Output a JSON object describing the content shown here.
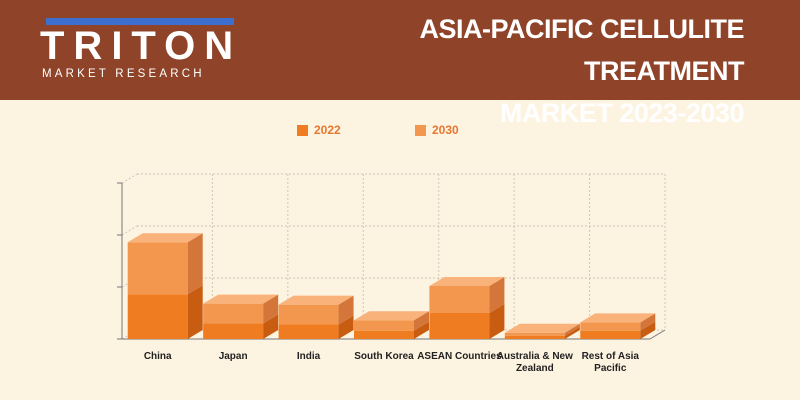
{
  "header": {
    "logo_text": "TRITON",
    "logo_subtext": "MARKET RESEARCH",
    "title_line1": "ASIA-PACIFIC CELLULITE TREATMENT",
    "title_line2": "MARKET 2023-2030"
  },
  "colors": {
    "header_bg": "#8f4328",
    "page_bg": "#fdf3e1",
    "logo_accent": "#3d6fd0",
    "series_2022": "#f07c22",
    "series_2030": "#f2974d"
  },
  "chart_data": {
    "type": "bar",
    "stacked": true,
    "style": "3d",
    "title": "ASIA-PACIFIC CELLULITE TREATMENT MARKET 2023-2030",
    "categories": [
      "China",
      "Japan",
      "India",
      "South Korea",
      "ASEAN Countries",
      "Australia & New Zealand",
      "Rest of Asia Pacific"
    ],
    "series": [
      {
        "name": "2022",
        "values": [
          43,
          15,
          14,
          8,
          25,
          3,
          8
        ]
      },
      {
        "name": "2030",
        "values": [
          93,
          34,
          33,
          18,
          51,
          6,
          16
        ]
      }
    ],
    "ylim": [
      0,
      150
    ],
    "grid": true,
    "legend": "top-center",
    "xlabel": "",
    "ylabel": ""
  }
}
